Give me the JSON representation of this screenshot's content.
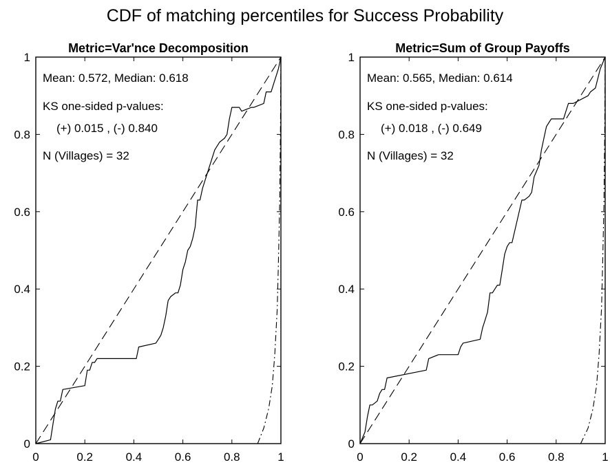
{
  "figure": {
    "title": "CDF of matching percentiles for Success Probability"
  },
  "chart_data": [
    {
      "type": "line",
      "title": "Metric=Var'nce Decomposition",
      "xlim": [
        0,
        1
      ],
      "ylim": [
        0,
        1
      ],
      "xticks": [
        "0",
        "0.2",
        "0.4",
        "0.6",
        "0.8",
        "1"
      ],
      "yticks": [
        "0",
        "0.2",
        "0.4",
        "0.6",
        "0.8",
        "1"
      ],
      "grid": false,
      "annotations": [
        "Mean: 0.572,  Median: 0.618",
        "KS one-sided p-values:",
        "(+) 0.015 ,  (-) 0.840",
        "N (Villages) = 32"
      ],
      "series": [
        {
          "style": "solid",
          "x": [
            0.0,
            0.06,
            0.07,
            0.08,
            0.09,
            0.1,
            0.11,
            0.2,
            0.21,
            0.22,
            0.23,
            0.24,
            0.25,
            0.41,
            0.42,
            0.49,
            0.5,
            0.51,
            0.52,
            0.53,
            0.54,
            0.55,
            0.57,
            0.58,
            0.59,
            0.6,
            0.61,
            0.62,
            0.63,
            0.64,
            0.65,
            0.66,
            0.67,
            0.68,
            0.7,
            0.73,
            0.74,
            0.75,
            0.77,
            0.78,
            0.79,
            0.8,
            0.83,
            0.84,
            0.88,
            0.89,
            0.93,
            0.94,
            0.96,
            0.97,
            0.98,
            0.99,
            1.0
          ],
          "y": [
            0.0,
            0.01,
            0.05,
            0.09,
            0.11,
            0.11,
            0.14,
            0.15,
            0.19,
            0.19,
            0.21,
            0.21,
            0.22,
            0.22,
            0.25,
            0.26,
            0.27,
            0.28,
            0.3,
            0.33,
            0.37,
            0.38,
            0.39,
            0.39,
            0.41,
            0.45,
            0.47,
            0.5,
            0.51,
            0.53,
            0.56,
            0.63,
            0.63,
            0.66,
            0.7,
            0.76,
            0.77,
            0.78,
            0.79,
            0.8,
            0.84,
            0.87,
            0.87,
            0.86,
            0.87,
            0.87,
            0.88,
            0.91,
            0.91,
            0.93,
            0.95,
            0.97,
            1.0
          ]
        },
        {
          "style": "dashed",
          "x": [
            0,
            1
          ],
          "y": [
            0,
            1
          ]
        },
        {
          "style": "dash-dot",
          "x": [
            0.905,
            0.93,
            0.95,
            0.965,
            0.975,
            0.985,
            0.99,
            0.995,
            0.998,
            1.0
          ],
          "y": [
            0.0,
            0.04,
            0.09,
            0.15,
            0.23,
            0.35,
            0.47,
            0.62,
            0.8,
            1.0
          ]
        }
      ]
    },
    {
      "type": "line",
      "title": "Metric=Sum of Group Payoffs",
      "xlim": [
        0,
        1
      ],
      "ylim": [
        0,
        1
      ],
      "xticks": [
        "0",
        "0.2",
        "0.4",
        "0.6",
        "0.8",
        "1"
      ],
      "yticks": [
        "0",
        "0.2",
        "0.4",
        "0.6",
        "0.8",
        "1"
      ],
      "grid": false,
      "annotations": [
        "Mean: 0.565,  Median: 0.614",
        "KS one-sided p-values:",
        "(+) 0.018 ,  (-) 0.649",
        "N (Villages) = 32"
      ],
      "series": [
        {
          "style": "solid",
          "x": [
            0.0,
            0.02,
            0.03,
            0.04,
            0.05,
            0.07,
            0.08,
            0.09,
            0.1,
            0.11,
            0.27,
            0.28,
            0.32,
            0.4,
            0.41,
            0.42,
            0.49,
            0.5,
            0.51,
            0.52,
            0.53,
            0.54,
            0.56,
            0.57,
            0.58,
            0.59,
            0.6,
            0.61,
            0.62,
            0.66,
            0.67,
            0.69,
            0.7,
            0.71,
            0.73,
            0.74,
            0.75,
            0.76,
            0.77,
            0.78,
            0.83,
            0.84,
            0.85,
            0.86,
            0.87,
            0.93,
            0.94,
            0.96,
            0.98,
            1.0
          ],
          "y": [
            0.0,
            0.03,
            0.07,
            0.1,
            0.1,
            0.11,
            0.13,
            0.14,
            0.14,
            0.17,
            0.19,
            0.22,
            0.23,
            0.23,
            0.25,
            0.26,
            0.27,
            0.3,
            0.32,
            0.34,
            0.39,
            0.39,
            0.41,
            0.41,
            0.45,
            0.49,
            0.51,
            0.52,
            0.52,
            0.63,
            0.63,
            0.64,
            0.65,
            0.69,
            0.72,
            0.76,
            0.79,
            0.82,
            0.83,
            0.84,
            0.84,
            0.86,
            0.88,
            0.88,
            0.88,
            0.9,
            0.91,
            0.92,
            0.97,
            1.0
          ]
        },
        {
          "style": "dashed",
          "x": [
            0,
            1
          ],
          "y": [
            0,
            1
          ]
        },
        {
          "style": "dash-dot",
          "x": [
            0.9,
            0.93,
            0.95,
            0.965,
            0.975,
            0.985,
            0.99,
            0.995,
            0.998,
            1.0
          ],
          "y": [
            0.0,
            0.04,
            0.09,
            0.15,
            0.23,
            0.35,
            0.47,
            0.62,
            0.8,
            1.0
          ]
        }
      ]
    }
  ]
}
